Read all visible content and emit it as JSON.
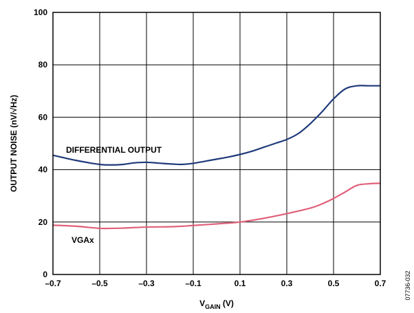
{
  "chart_data": {
    "type": "line",
    "xlabel": "V",
    "xlabel_sub": "GAIN",
    "xlabel_unit": " (V)",
    "ylabel": "OUTPUT NOISE (nV/√Hz)",
    "xlim": [
      -0.7,
      0.7
    ],
    "ylim": [
      0,
      100
    ],
    "x_ticks": [
      "–0.7",
      "–0.5",
      "–0.3",
      "–0.1",
      "0.1",
      "0.3",
      "0.5",
      "0.7"
    ],
    "x_tick_values": [
      -0.7,
      -0.5,
      -0.3,
      -0.1,
      0.1,
      0.3,
      0.5,
      0.7
    ],
    "y_ticks": [
      "0",
      "20",
      "40",
      "60",
      "80",
      "100"
    ],
    "y_tick_values": [
      0,
      20,
      40,
      60,
      80,
      100
    ],
    "grid": true,
    "series": [
      {
        "name": "DIFFERENTIAL OUTPUT",
        "color": "#1f3a7a",
        "x": [
          -0.7,
          -0.6,
          -0.5,
          -0.45,
          -0.4,
          -0.35,
          -0.3,
          -0.25,
          -0.2,
          -0.15,
          -0.1,
          -0.05,
          0.0,
          0.05,
          0.1,
          0.15,
          0.2,
          0.25,
          0.3,
          0.35,
          0.4,
          0.45,
          0.5,
          0.55,
          0.6,
          0.65,
          0.7
        ],
        "values": [
          45.5,
          43.5,
          42,
          41.8,
          42.0,
          42.6,
          42.8,
          42.5,
          42.2,
          42.0,
          42.4,
          43.2,
          44.0,
          44.8,
          45.8,
          47.0,
          48.5,
          50.0,
          51.5,
          53.8,
          57.5,
          62.0,
          67.0,
          70.8,
          72.0,
          72.0,
          72.0
        ]
      },
      {
        "name": "VGAx",
        "color": "#e0607a",
        "x": [
          -0.7,
          -0.6,
          -0.5,
          -0.45,
          -0.4,
          -0.3,
          -0.2,
          -0.15,
          -0.1,
          0.0,
          0.1,
          0.2,
          0.3,
          0.4,
          0.45,
          0.5,
          0.55,
          0.6,
          0.65,
          0.7
        ],
        "values": [
          18.8,
          18.4,
          17.6,
          17.6,
          17.7,
          18.1,
          18.2,
          18.4,
          18.7,
          19.3,
          20.0,
          21.4,
          23.2,
          25.3,
          26.9,
          29.0,
          31.5,
          34.0,
          34.6,
          34.8
        ]
      }
    ]
  },
  "figure_code": "07736-032"
}
